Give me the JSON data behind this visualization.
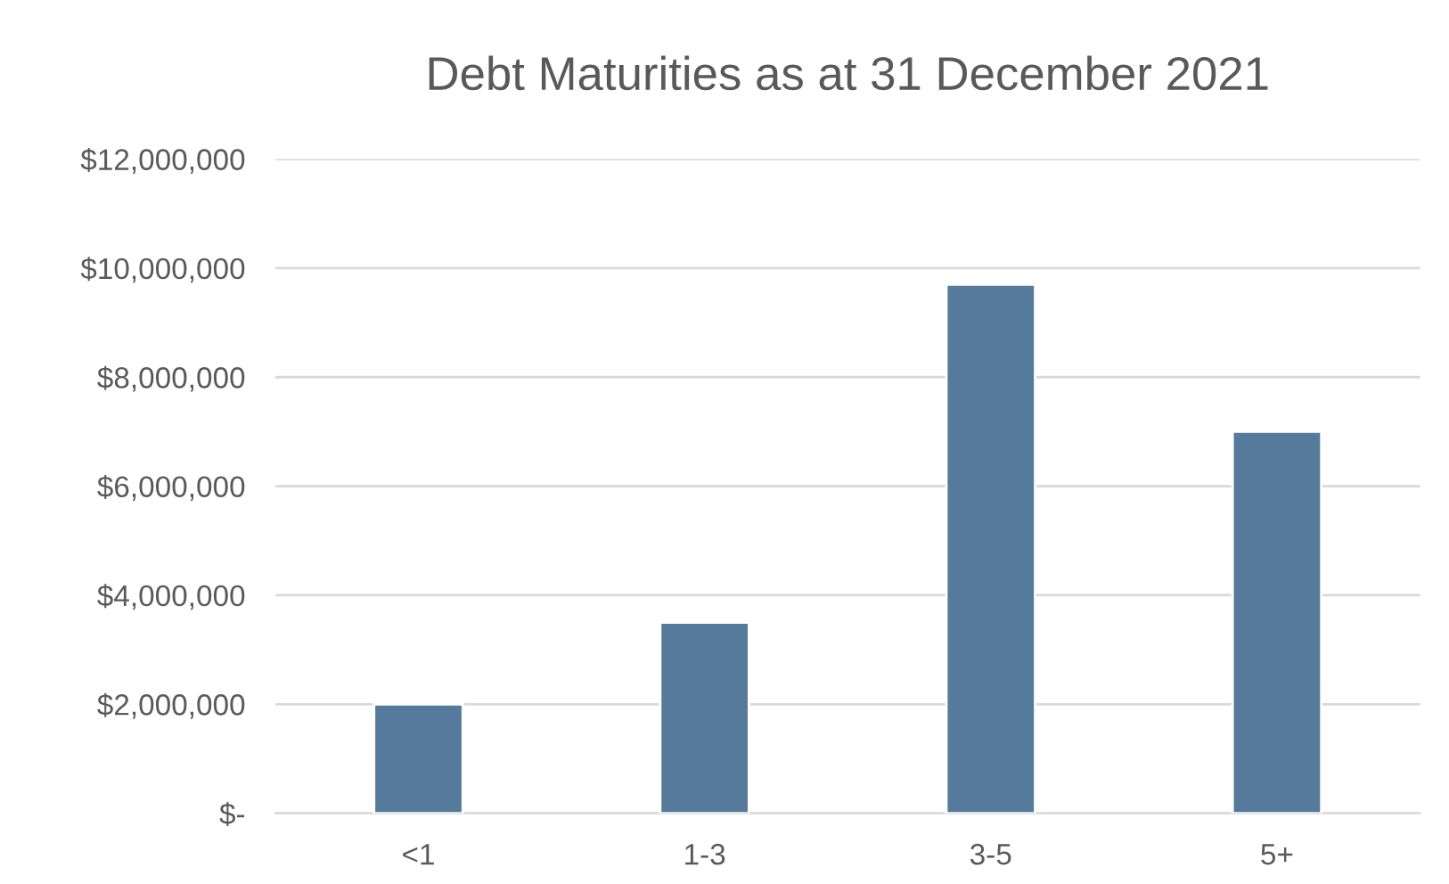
{
  "chart_data": {
    "type": "bar",
    "title": "Debt Maturities as at 31 December 2021",
    "categories": [
      "<1",
      "1-3",
      "3-5",
      "5+"
    ],
    "values": [
      2000000,
      3500000,
      9700000,
      7000000
    ],
    "color": "#557a9b",
    "ylim": [
      0,
      12000000
    ],
    "yticks": [
      {
        "value": 0,
        "label": "$-"
      },
      {
        "value": 2000000,
        "label": "$2,000,000"
      },
      {
        "value": 4000000,
        "label": "$4,000,000"
      },
      {
        "value": 6000000,
        "label": "$6,000,000"
      },
      {
        "value": 8000000,
        "label": "$8,000,000"
      },
      {
        "value": 10000000,
        "label": "$10,000,000"
      },
      {
        "value": 12000000,
        "label": "$12,000,000"
      }
    ],
    "grid": "y"
  }
}
